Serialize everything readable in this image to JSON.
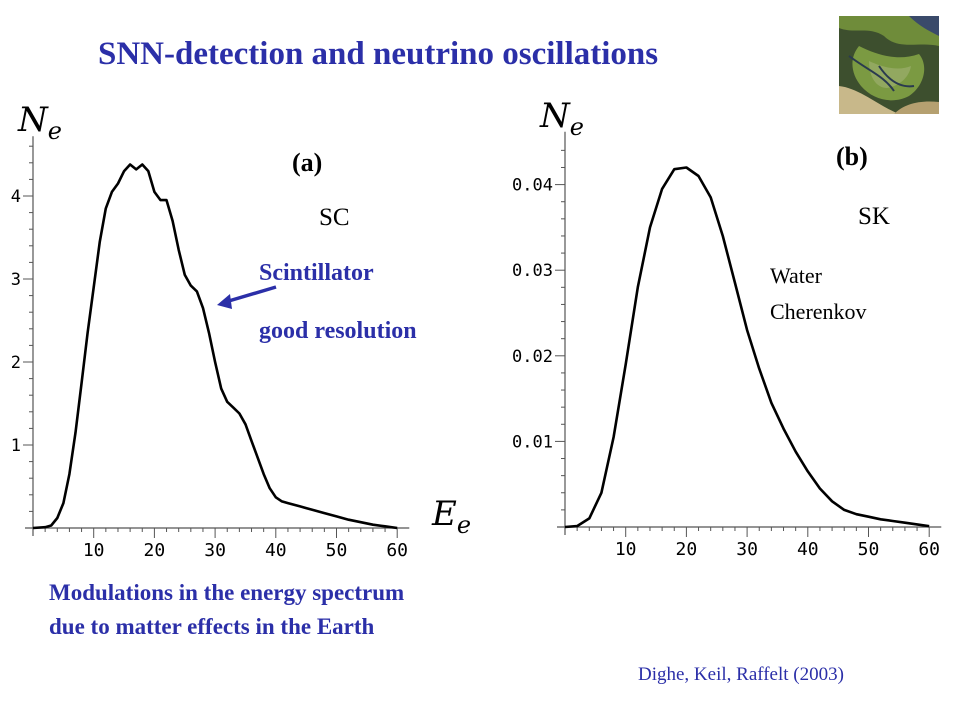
{
  "title": "SNN-detection and neutrino oscillations",
  "thumbnail_icon": "satellite-delta-image",
  "panels": {
    "a": {
      "label": "(a)",
      "detector": "SC",
      "note_line1": "Scintillator",
      "note_line2": "good resolution",
      "ylabel_main": "N",
      "ylabel_sub": "e",
      "xlabel_main": "E",
      "xlabel_sub": "e"
    },
    "b": {
      "label": "(b)",
      "detector": "SK",
      "note_line1": "Water",
      "note_line2": "Cherenkov",
      "ylabel_main": "N",
      "ylabel_sub": "e"
    }
  },
  "footnote": "Modulations in the energy spectrum due to matter effects in the Earth",
  "citation": "Dighe, Keil, Raffelt (2003)",
  "colors": {
    "title": "#2b2fa8",
    "arrow": "#2b2fa8",
    "curve": "#000000"
  },
  "chart_data": [
    {
      "type": "line",
      "panel": "(a)",
      "xlabel": "Ee",
      "ylabel": "Ne",
      "xlim": [
        0,
        61
      ],
      "ylim": [
        0,
        4.6
      ],
      "xticks": [
        "10",
        "20",
        "30",
        "40",
        "50",
        "60"
      ],
      "yticks": [
        "1",
        "2",
        "3",
        "4"
      ],
      "grid": false,
      "series": [
        {
          "x": [
            0,
            2,
            3,
            4,
            5,
            6,
            7,
            8,
            9,
            10,
            11,
            12,
            13,
            14,
            15,
            16,
            17,
            18,
            19,
            20,
            21,
            22,
            23,
            24,
            25,
            26,
            27,
            28,
            29,
            30,
            31,
            32,
            33,
            34,
            35,
            36,
            37,
            38,
            39,
            40,
            41,
            42,
            43,
            44,
            45,
            46,
            48,
            50,
            52,
            54,
            56,
            58,
            60
          ],
          "y": [
            0.0,
            0.01,
            0.03,
            0.12,
            0.3,
            0.65,
            1.15,
            1.75,
            2.35,
            2.9,
            3.45,
            3.85,
            4.05,
            4.15,
            4.3,
            4.38,
            4.32,
            4.38,
            4.3,
            4.05,
            3.95,
            3.95,
            3.7,
            3.35,
            3.05,
            2.92,
            2.85,
            2.65,
            2.35,
            2.0,
            1.68,
            1.52,
            1.45,
            1.38,
            1.25,
            1.05,
            0.85,
            0.65,
            0.48,
            0.37,
            0.32,
            0.3,
            0.28,
            0.26,
            0.24,
            0.22,
            0.18,
            0.14,
            0.1,
            0.07,
            0.04,
            0.02,
            0.0
          ]
        }
      ]
    },
    {
      "type": "line",
      "panel": "(b)",
      "ylabel": "Ne",
      "xlim": [
        0,
        61
      ],
      "ylim": [
        0,
        0.045
      ],
      "xticks": [
        "10",
        "20",
        "30",
        "40",
        "50",
        "60"
      ],
      "yticks": [
        "0.01",
        "0.02",
        "0.03",
        "0.04"
      ],
      "grid": false,
      "series": [
        {
          "x": [
            0,
            2,
            4,
            6,
            8,
            10,
            12,
            14,
            16,
            18,
            20,
            22,
            24,
            26,
            28,
            30,
            32,
            34,
            36,
            38,
            40,
            42,
            44,
            46,
            48,
            50,
            52,
            54,
            56,
            58,
            60
          ],
          "y": [
            0.0,
            0.0001,
            0.001,
            0.004,
            0.0105,
            0.019,
            0.028,
            0.035,
            0.0395,
            0.0418,
            0.042,
            0.041,
            0.0385,
            0.034,
            0.0285,
            0.023,
            0.0185,
            0.0145,
            0.0115,
            0.0088,
            0.0065,
            0.0045,
            0.003,
            0.002,
            0.0015,
            0.0012,
            0.0009,
            0.0007,
            0.0005,
            0.0003,
            0.0001
          ]
        }
      ]
    }
  ]
}
